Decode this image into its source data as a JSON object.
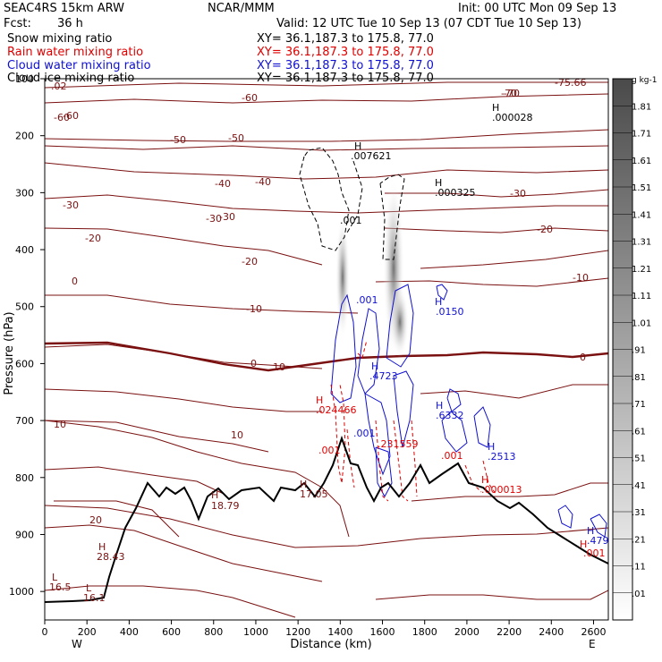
{
  "header": {
    "model": "SEAC4RS 15km ARW",
    "org": "NCAR/MMM",
    "init": "Init: 00 UTC Mon 09 Sep 13",
    "fcst_label": "Fcst:",
    "fcst_value": "36 h",
    "valid": "Valid: 12 UTC Tue 10 Sep 13 (07 CDT Tue 10 Sep 13)"
  },
  "fields": [
    {
      "name": "Snow mixing ratio",
      "xy": "XY=  36.1,187.3 to 175.8, 77.0",
      "color": "#000000"
    },
    {
      "name": "Rain water mixing ratio",
      "xy": "XY=  36.1,187.3 to 175.8, 77.0",
      "color": "#e00000"
    },
    {
      "name": "Cloud water mixing ratio",
      "xy": "XY=  36.1,187.3 to 175.8, 77.0",
      "color": "#1010d0"
    },
    {
      "name": "Cloud ice mixing ratio",
      "xy": "XY=  36.1,187.3 to 175.8, 77.0",
      "color": "#000000"
    }
  ],
  "chart_data": {
    "type": "cross-section",
    "xlabel": "Distance (km)",
    "ylabel": "Pressure (hPa)",
    "xlim": [
      0,
      2670
    ],
    "ylim": [
      1050,
      100
    ],
    "xticks": [
      "0",
      "200",
      "400",
      "600",
      "800",
      "1000",
      "1200",
      "1400",
      "1600",
      "1800",
      "2000",
      "2200",
      "2400",
      "2600"
    ],
    "yticks": [
      "100",
      "200",
      "300",
      "400",
      "500",
      "600",
      "700",
      "800",
      "900",
      "1000"
    ],
    "x_end_labels": {
      "left": "W",
      "right": "E"
    },
    "temperature_contours_degC": [
      20,
      10,
      0,
      -10,
      -20,
      -30,
      -40,
      -50,
      -60,
      -70
    ],
    "temperature_labels": [
      "-75.66",
      "-70",
      "-60",
      "-60",
      "-50",
      "-50",
      "-40",
      "-40",
      "-30",
      "-30",
      "-30",
      "-30",
      "-20",
      "-20",
      "-20",
      "-10",
      "-10",
      "0",
      "0",
      "0",
      "10",
      "10",
      "10",
      "20",
      "-60",
      "-70",
      ".02"
    ],
    "extrema_labels": [
      {
        "text": ".000028",
        "color": "#000000"
      },
      {
        "text": ".007621",
        "color": "#000000"
      },
      {
        "text": ".000325",
        "color": "#000000"
      },
      {
        "text": ".001",
        "color": "#000000"
      },
      {
        "text": ".001",
        "color": "#1010d0"
      },
      {
        "text": ".0150",
        "color": "#1010d0"
      },
      {
        "text": ".4723",
        "color": "#1010d0"
      },
      {
        "text": ".6332",
        "color": "#1010d0"
      },
      {
        "text": ".2513",
        "color": "#1010d0"
      },
      {
        "text": ".479",
        "color": "#1010d0"
      },
      {
        "text": ".001",
        "color": "#1010d0"
      },
      {
        "text": ".024466",
        "color": "#e00000"
      },
      {
        "text": ".001",
        "color": "#e00000"
      },
      {
        "text": ".231559",
        "color": "#e00000"
      },
      {
        "text": ".000013",
        "color": "#e00000"
      },
      {
        "text": ".001",
        "color": "#e00000"
      },
      {
        "text": ".001",
        "color": "#e00000"
      },
      {
        "text": "18.79",
        "color": "#7a1010"
      },
      {
        "text": "17.05",
        "color": "#7a1010"
      },
      {
        "text": "28.43",
        "color": "#7a1010"
      },
      {
        "text": "16.5",
        "color": "#7a1010"
      },
      {
        "text": "16.1",
        "color": "#7a1010"
      }
    ],
    "colorbar": {
      "unit": "g kg-1",
      "levels": [
        ".01",
        ".11",
        ".21",
        ".31",
        ".41",
        ".51",
        ".61",
        ".71",
        ".81",
        ".91",
        "1.01",
        "1.11",
        "1.21",
        "1.31",
        "1.41",
        "1.51",
        "1.61",
        "1.71",
        "1.81"
      ]
    }
  },
  "colors": {
    "temp": "#7a1010",
    "zero": "#7a1010",
    "rain": "#e00000",
    "cloud": "#1010d0",
    "terrain": "#000000"
  }
}
